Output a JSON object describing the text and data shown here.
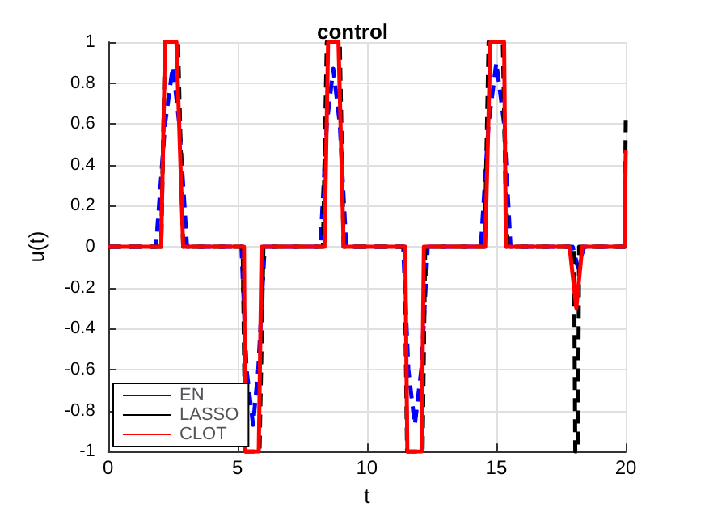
{
  "chart_data": {
    "type": "line",
    "title": "control",
    "xlabel": "t",
    "ylabel": "u(t)",
    "xlim": [
      0,
      20
    ],
    "xticks": [
      0,
      5,
      10,
      15,
      20
    ],
    "ylim": [
      -1,
      1
    ],
    "yticks": [
      -1,
      -0.8,
      -0.6,
      -0.4,
      -0.2,
      0,
      0.2,
      0.4,
      0.6,
      0.8,
      1
    ],
    "grid": true,
    "legend": "bottom left",
    "marker": "none",
    "series": [
      {
        "name": "EN",
        "color": "#0000ff",
        "line_style": "dashed",
        "x": [
          0,
          1.85,
          2.2,
          2.5,
          2.75,
          3.05,
          5.15,
          5.35,
          5.6,
          5.8,
          6.05,
          8.2,
          8.45,
          8.7,
          8.95,
          9.2,
          11.4,
          11.6,
          11.85,
          12.1,
          12.35,
          14.4,
          14.7,
          15.0,
          15.3,
          15.55,
          17.95,
          18.15,
          18.4,
          20
        ],
        "values": [
          0,
          0,
          0.6,
          0.88,
          0.6,
          0,
          0,
          -0.6,
          -0.87,
          -0.6,
          0,
          0,
          0.6,
          0.87,
          0.6,
          0,
          0,
          -0.6,
          -0.87,
          -0.6,
          0,
          0,
          0.6,
          0.9,
          0.6,
          0,
          0,
          -0.1,
          0,
          0
        ]
      },
      {
        "name": "LASSO",
        "color": "#000000",
        "line_style": "dashed",
        "x": [
          0,
          2.05,
          2.2,
          2.7,
          2.9,
          5.2,
          5.3,
          5.85,
          6.0,
          8.3,
          8.45,
          8.95,
          9.1,
          11.45,
          11.55,
          12.15,
          12.25,
          14.55,
          14.7,
          15.25,
          15.4,
          18.0,
          18.05,
          18.15,
          18.2,
          19.95,
          20
        ],
        "values": [
          0,
          0,
          1,
          1,
          0,
          0,
          -1,
          -1,
          0,
          0,
          1,
          1,
          0,
          0,
          -1,
          -1,
          0,
          0,
          1,
          1,
          0,
          0,
          -1,
          -1,
          0,
          0,
          0.62
        ]
      },
      {
        "name": "CLOT",
        "color": "#ff0000",
        "line_style": "solid",
        "x": [
          0,
          2.05,
          2.2,
          2.64,
          2.9,
          5.25,
          5.3,
          5.82,
          5.93,
          8.36,
          8.5,
          8.9,
          9.1,
          11.48,
          11.56,
          12.11,
          12.2,
          14.57,
          14.77,
          15.3,
          15.37,
          17.83,
          18.09,
          18.32,
          19.95,
          20
        ],
        "values": [
          0,
          0,
          1,
          1,
          0,
          0,
          -1,
          -1,
          0,
          0,
          1,
          1,
          0,
          0,
          -1,
          -1,
          0,
          0,
          1,
          1,
          0,
          0,
          -0.3,
          0,
          0,
          0.47
        ]
      }
    ]
  }
}
